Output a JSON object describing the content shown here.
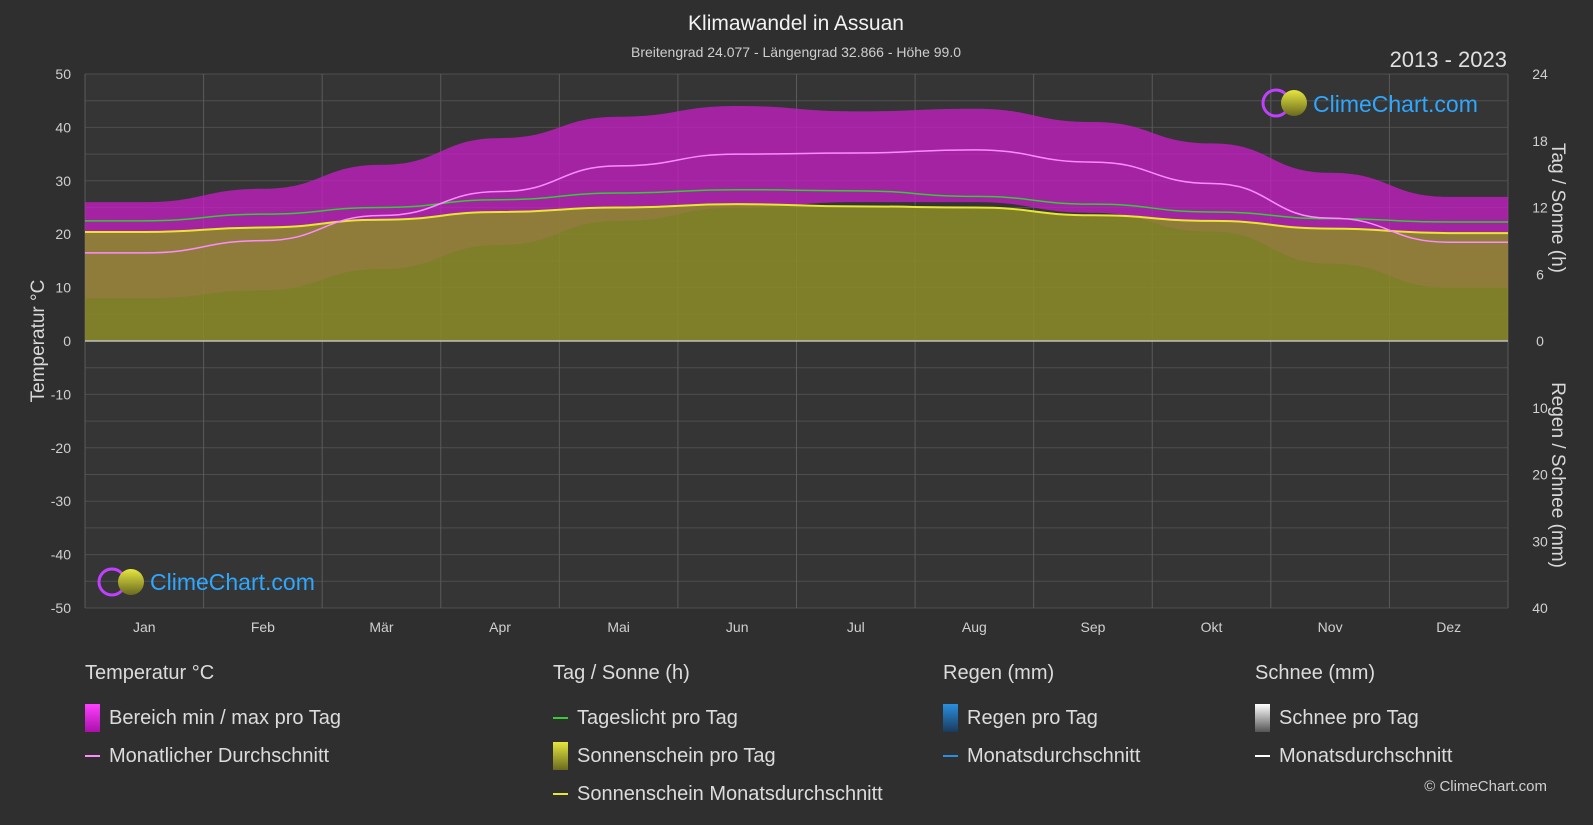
{
  "header": {
    "title": "Klimawandel in Assuan",
    "subtitle": "Breitengrad 24.077 - Längengrad 32.866 - Höhe 99.0",
    "years": "2013 - 2023"
  },
  "axes": {
    "left_title": "Temperatur °C",
    "right_top_title": "Tag / Sonne (h)",
    "right_bottom_title": "Regen / Schnee (mm)",
    "left_ticks": [
      "50",
      "40",
      "30",
      "20",
      "10",
      "0",
      "-10",
      "-20",
      "-30",
      "-40",
      "-50"
    ],
    "right_top_ticks": [
      "24",
      "18",
      "12",
      "6",
      "0"
    ],
    "right_bottom_ticks": [
      "10",
      "20",
      "30",
      "40"
    ],
    "months": [
      "Jan",
      "Feb",
      "Mär",
      "Apr",
      "Mai",
      "Jun",
      "Jul",
      "Aug",
      "Sep",
      "Okt",
      "Nov",
      "Dez"
    ]
  },
  "logo": {
    "text": "ClimeChart.com"
  },
  "legend": {
    "temp": {
      "title": "Temperatur °C",
      "range": "Bereich min / max pro Tag",
      "avg": "Monatlicher Durchschnitt"
    },
    "sun": {
      "title": "Tag / Sonne (h)",
      "daylight": "Tageslicht pro Tag",
      "sunshine": "Sonnenschein pro Tag",
      "sun_avg": "Sonnenschein Monatsdurchschnitt"
    },
    "rain": {
      "title": "Regen (mm)",
      "per_day": "Regen pro Tag",
      "avg": "Monatsdurchschnitt"
    },
    "snow": {
      "title": "Schnee (mm)",
      "per_day": "Schnee pro Tag",
      "avg": "Monatsdurchschnitt"
    }
  },
  "copyright": "© ClimeChart.com",
  "colors": {
    "background": "#2f2f2f",
    "temp_range": "#c81ec8",
    "temp_avg": "#ff8cff",
    "daylight": "#33cc33",
    "sunshine": "#8c8c28",
    "sunshine_avg": "#e6e633",
    "rain": "#2a8fe0",
    "snow": "#ffffff"
  },
  "chart_data": {
    "type": "area",
    "x": [
      "Jan",
      "Feb",
      "Mär",
      "Apr",
      "Mai",
      "Jun",
      "Jul",
      "Aug",
      "Sep",
      "Okt",
      "Nov",
      "Dez"
    ],
    "ylim_temp": [
      -50,
      50
    ],
    "ylim_sun_hours": [
      0,
      24
    ],
    "ylim_precip_mm": [
      0,
      40
    ],
    "series": [
      {
        "name": "Monatlicher Durchschnitt",
        "axis": "temp",
        "values": [
          16.5,
          18.8,
          23.5,
          28.0,
          32.8,
          35.0,
          35.2,
          35.8,
          33.5,
          29.5,
          23.0,
          18.5
        ]
      },
      {
        "name": "Bereich min / max pro Tag",
        "axis": "temp",
        "min": [
          8,
          9.5,
          13.5,
          18,
          22.5,
          25,
          26,
          26,
          24,
          20.5,
          14.5,
          10
        ],
        "max": [
          26,
          28.5,
          33,
          38,
          42,
          44,
          43,
          43.5,
          41,
          37,
          31.5,
          27
        ]
      },
      {
        "name": "Tageslicht pro Tag",
        "axis": "sun",
        "values": [
          10.8,
          11.4,
          12.0,
          12.7,
          13.3,
          13.6,
          13.5,
          13.0,
          12.3,
          11.6,
          11.0,
          10.7
        ]
      },
      {
        "name": "Sonnenschein pro Tag",
        "axis": "sun",
        "values": [
          9.8,
          10.2,
          10.9,
          11.6,
          12.0,
          12.3,
          12.1,
          12.0,
          11.3,
          10.8,
          10.1,
          9.7
        ]
      },
      {
        "name": "Sonnenschein Monatsdurchschnitt",
        "axis": "sun",
        "values": [
          9.8,
          10.2,
          10.9,
          11.6,
          12.0,
          12.3,
          12.1,
          12.0,
          11.3,
          10.8,
          10.1,
          9.7
        ]
      },
      {
        "name": "Regen pro Tag",
        "axis": "precip",
        "values": [
          0,
          0,
          0,
          0,
          0,
          0,
          0,
          0,
          0,
          0,
          0,
          0
        ]
      },
      {
        "name": "Schnee pro Tag",
        "axis": "precip",
        "values": [
          0,
          0,
          0,
          0,
          0,
          0,
          0,
          0,
          0,
          0,
          0,
          0
        ]
      }
    ]
  }
}
